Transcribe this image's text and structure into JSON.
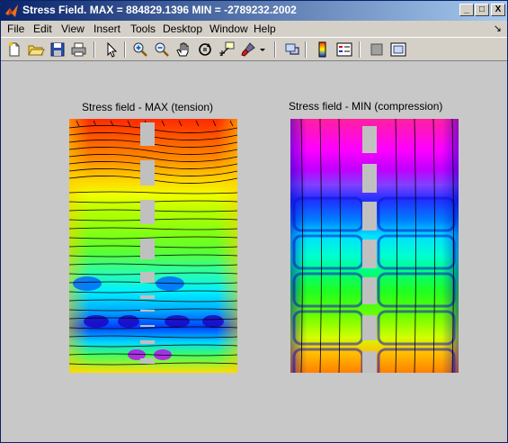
{
  "window": {
    "title": "Stress Field. MAX = 884829.1396   MIN = -2789232.2002",
    "buttons": {
      "minimize": "_",
      "maximize": "□",
      "close": "X"
    }
  },
  "menubar": {
    "items": [
      "File",
      "Edit",
      "View",
      "Insert",
      "Tools",
      "Desktop",
      "Window",
      "Help"
    ],
    "dock_arrow": "↘"
  },
  "toolbar": {
    "icons": [
      "new-file-icon",
      "open-file-icon",
      "save-icon",
      "print-icon",
      "edit-plot-arrow-icon",
      "zoom-in-icon",
      "zoom-out-icon",
      "pan-hand-icon",
      "rotate-3d-icon",
      "data-cursor-icon",
      "brush-icon",
      "link-plot-icon",
      "colorbar-icon",
      "legend-icon",
      "hide-plot-tools-icon",
      "show-plot-tools-icon"
    ]
  },
  "plots": {
    "left": {
      "title": "Stress field - MAX (tension)"
    },
    "right": {
      "title": "Stress field - MIN (compression)"
    }
  },
  "colors": {
    "titlebar_start": "#0a246a",
    "titlebar_end": "#a6caf0",
    "figure_background": "#c8c8c8",
    "hole_gray": "#c0c0c0"
  }
}
